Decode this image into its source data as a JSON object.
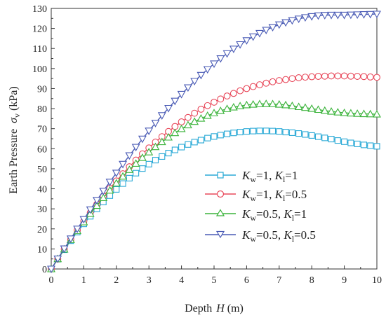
{
  "chart_data": {
    "type": "line",
    "xlabel_text": "Depth",
    "xlabel_var": "H",
    "xlabel_unit": "(m)",
    "ylabel_text": "Earth Pressure",
    "ylabel_var": "σ",
    "ylabel_sub": "v",
    "ylabel_unit": "(kPa)",
    "xlim": [
      0,
      10
    ],
    "ylim": [
      0,
      130
    ],
    "x_ticks": [
      0,
      1,
      2,
      3,
      4,
      5,
      6,
      7,
      8,
      9,
      10
    ],
    "y_ticks": [
      0,
      10,
      20,
      30,
      40,
      50,
      60,
      70,
      80,
      90,
      100,
      110,
      120,
      130
    ],
    "grid": false,
    "legend_position": "center-right",
    "x": [
      0,
      0.2,
      0.4,
      0.6,
      0.8,
      1.0,
      1.2,
      1.4,
      1.6,
      1.8,
      2.0,
      2.2,
      2.4,
      2.6,
      2.8,
      3.0,
      3.2,
      3.4,
      3.6,
      3.8,
      4.0,
      4.2,
      4.4,
      4.6,
      4.8,
      5.0,
      5.2,
      5.4,
      5.6,
      5.8,
      6.0,
      6.2,
      6.4,
      6.6,
      6.8,
      7.0,
      7.2,
      7.4,
      7.6,
      7.8,
      8.0,
      8.2,
      8.4,
      8.6,
      8.8,
      9.0,
      9.2,
      9.4,
      9.6,
      9.8,
      10.0
    ],
    "series": [
      {
        "name": "Kw=1, Kl=1",
        "legend": {
          "k1": "K",
          "s1": "w",
          "v1": "=1, ",
          "k2": "K",
          "s2": "l",
          "v2": "=1"
        },
        "color": "#29a9d6",
        "marker": "square",
        "values": [
          0,
          4.9,
          9.6,
          14.1,
          18.4,
          22.5,
          26.3,
          30.0,
          33.4,
          36.6,
          39.7,
          42.6,
          45.3,
          47.8,
          50.1,
          52.3,
          54.3,
          56.1,
          57.8,
          59.4,
          60.8,
          62.1,
          63.3,
          64.3,
          65.3,
          66.1,
          66.8,
          67.4,
          67.9,
          68.3,
          68.6,
          68.8,
          68.9,
          68.9,
          68.8,
          68.6,
          68.3,
          68.0,
          67.6,
          67.1,
          66.6,
          66.0,
          65.4,
          64.8,
          64.1,
          63.5,
          62.9,
          62.4,
          61.9,
          61.5,
          61.2
        ]
      },
      {
        "name": "Kw=1, Kl=0.5",
        "legend": {
          "k1": "K",
          "s1": "w",
          "v1": "=1, ",
          "k2": "K",
          "s2": "l",
          "v2": "=0.5"
        },
        "color": "#e8485a",
        "marker": "circle",
        "values": [
          0,
          5.0,
          9.9,
          14.6,
          19.3,
          23.8,
          28.1,
          32.3,
          36.3,
          40.2,
          43.9,
          47.5,
          51.0,
          54.3,
          57.4,
          60.4,
          63.3,
          66.0,
          68.6,
          71.1,
          73.4,
          75.6,
          77.7,
          79.7,
          81.5,
          83.2,
          84.8,
          86.3,
          87.6,
          88.9,
          90.0,
          91.0,
          91.9,
          92.7,
          93.4,
          94.0,
          94.5,
          95.0,
          95.4,
          95.7,
          95.9,
          96.1,
          96.2,
          96.3,
          96.3,
          96.3,
          96.2,
          96.1,
          96.0,
          95.8,
          95.6
        ]
      },
      {
        "name": "Kw=0.5, Kl=1",
        "legend": {
          "k1": "K",
          "s1": "w",
          "v1": "=0.5, ",
          "k2": "K",
          "s2": "l",
          "v2": "=1"
        },
        "color": "#3bb33b",
        "marker": "triangle-up",
        "values": [
          0,
          5.0,
          9.8,
          14.5,
          19.0,
          23.4,
          27.6,
          31.6,
          35.5,
          39.2,
          42.8,
          46.2,
          49.5,
          52.6,
          55.5,
          58.3,
          60.9,
          63.4,
          65.7,
          67.9,
          69.9,
          71.8,
          73.5,
          75.1,
          76.5,
          77.8,
          78.9,
          79.9,
          80.7,
          81.3,
          81.8,
          82.1,
          82.3,
          82.4,
          82.3,
          82.1,
          81.8,
          81.4,
          80.9,
          80.5,
          80.0,
          79.5,
          79.0,
          78.6,
          78.2,
          77.9,
          77.7,
          77.5,
          77.4,
          77.3,
          77.2
        ]
      },
      {
        "name": "Kw=0.5, Kl=0.5",
        "legend": {
          "k1": "K",
          "s1": "w",
          "v1": "=0.5, ",
          "k2": "K",
          "s2": "l",
          "v2": "=0.5"
        },
        "color": "#4a5bb5",
        "marker": "triangle-down",
        "values": [
          0,
          5.1,
          10.1,
          15.1,
          20.0,
          24.8,
          29.6,
          34.3,
          38.9,
          43.4,
          47.9,
          52.3,
          56.6,
          60.8,
          64.9,
          68.9,
          72.8,
          76.6,
          80.2,
          83.8,
          87.2,
          90.5,
          93.7,
          96.7,
          99.6,
          102.4,
          105.0,
          107.5,
          109.8,
          112.0,
          114.0,
          115.9,
          117.6,
          119.2,
          120.6,
          121.9,
          123.0,
          124.0,
          124.8,
          125.5,
          126.0,
          126.4,
          126.6,
          126.7,
          126.7,
          126.7,
          126.8,
          126.9,
          127.0,
          127.1,
          127.2
        ]
      }
    ]
  }
}
